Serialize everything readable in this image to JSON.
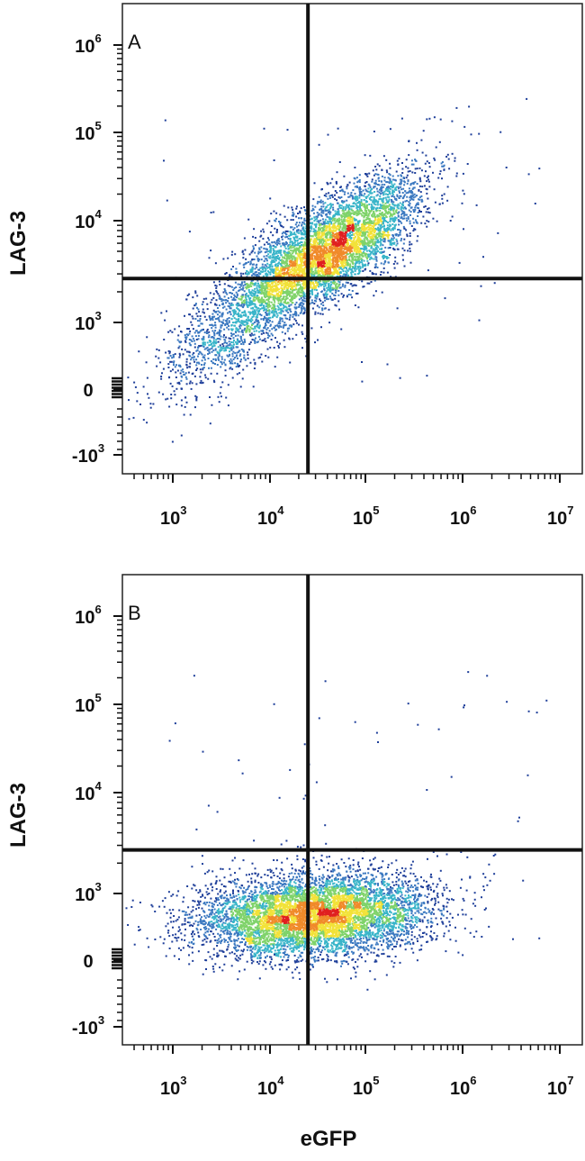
{
  "chart_data": [
    {
      "type": "scatter",
      "panel_label": "A",
      "ylabel": "LAG-3",
      "xlabel": "",
      "x_scale": "biexponential",
      "y_scale": "biexponential",
      "x_ticks": [
        {
          "base": "10",
          "exp": "3"
        },
        {
          "base": "10",
          "exp": "4"
        },
        {
          "base": "10",
          "exp": "5"
        },
        {
          "base": "10",
          "exp": "6"
        },
        {
          "base": "10",
          "exp": "7"
        }
      ],
      "y_ticks": [
        {
          "base": "10",
          "exp": "6"
        },
        {
          "base": "10",
          "exp": "5"
        },
        {
          "base": "10",
          "exp": "4"
        },
        {
          "base": "10",
          "exp": "3"
        },
        {
          "base": "0",
          "exp": ""
        },
        {
          "base": "-10",
          "exp": "3"
        }
      ],
      "quadrant_gate": {
        "x": 25000,
        "y": 2700
      },
      "density_clusters": [
        {
          "cx": 60000,
          "cy": 6000,
          "spread": "wide",
          "weight": 0.55
        },
        {
          "cx": 15000,
          "cy": 3500,
          "spread": "wide",
          "weight": 0.3
        },
        {
          "cx": 4000,
          "cy": 900,
          "spread": "wide",
          "weight": 0.15
        }
      ],
      "color_scale": [
        "#1f3f9a",
        "#3a78c0",
        "#39b5c9",
        "#7fd36a",
        "#f2e239",
        "#f08a2a",
        "#e02020"
      ]
    },
    {
      "type": "scatter",
      "panel_label": "B",
      "ylabel": "LAG-3",
      "xlabel": "eGFP",
      "x_scale": "biexponential",
      "y_scale": "biexponential",
      "x_ticks": [
        {
          "base": "10",
          "exp": "3"
        },
        {
          "base": "10",
          "exp": "4"
        },
        {
          "base": "10",
          "exp": "5"
        },
        {
          "base": "10",
          "exp": "6"
        },
        {
          "base": "10",
          "exp": "7"
        }
      ],
      "y_ticks": [
        {
          "base": "10",
          "exp": "6"
        },
        {
          "base": "10",
          "exp": "5"
        },
        {
          "base": "10",
          "exp": "4"
        },
        {
          "base": "10",
          "exp": "3"
        },
        {
          "base": "0",
          "exp": ""
        },
        {
          "base": "-10",
          "exp": "3"
        }
      ],
      "quadrant_gate": {
        "x": 25000,
        "y": 2700
      },
      "density_clusters": [
        {
          "cx": 15000,
          "cy": 600,
          "spread": "wide",
          "weight": 0.55
        },
        {
          "cx": 60000,
          "cy": 800,
          "spread": "wide",
          "weight": 0.45
        }
      ],
      "color_scale": [
        "#1f3f9a",
        "#3a78c0",
        "#39b5c9",
        "#7fd36a",
        "#f2e239",
        "#f08a2a",
        "#e02020"
      ]
    }
  ]
}
